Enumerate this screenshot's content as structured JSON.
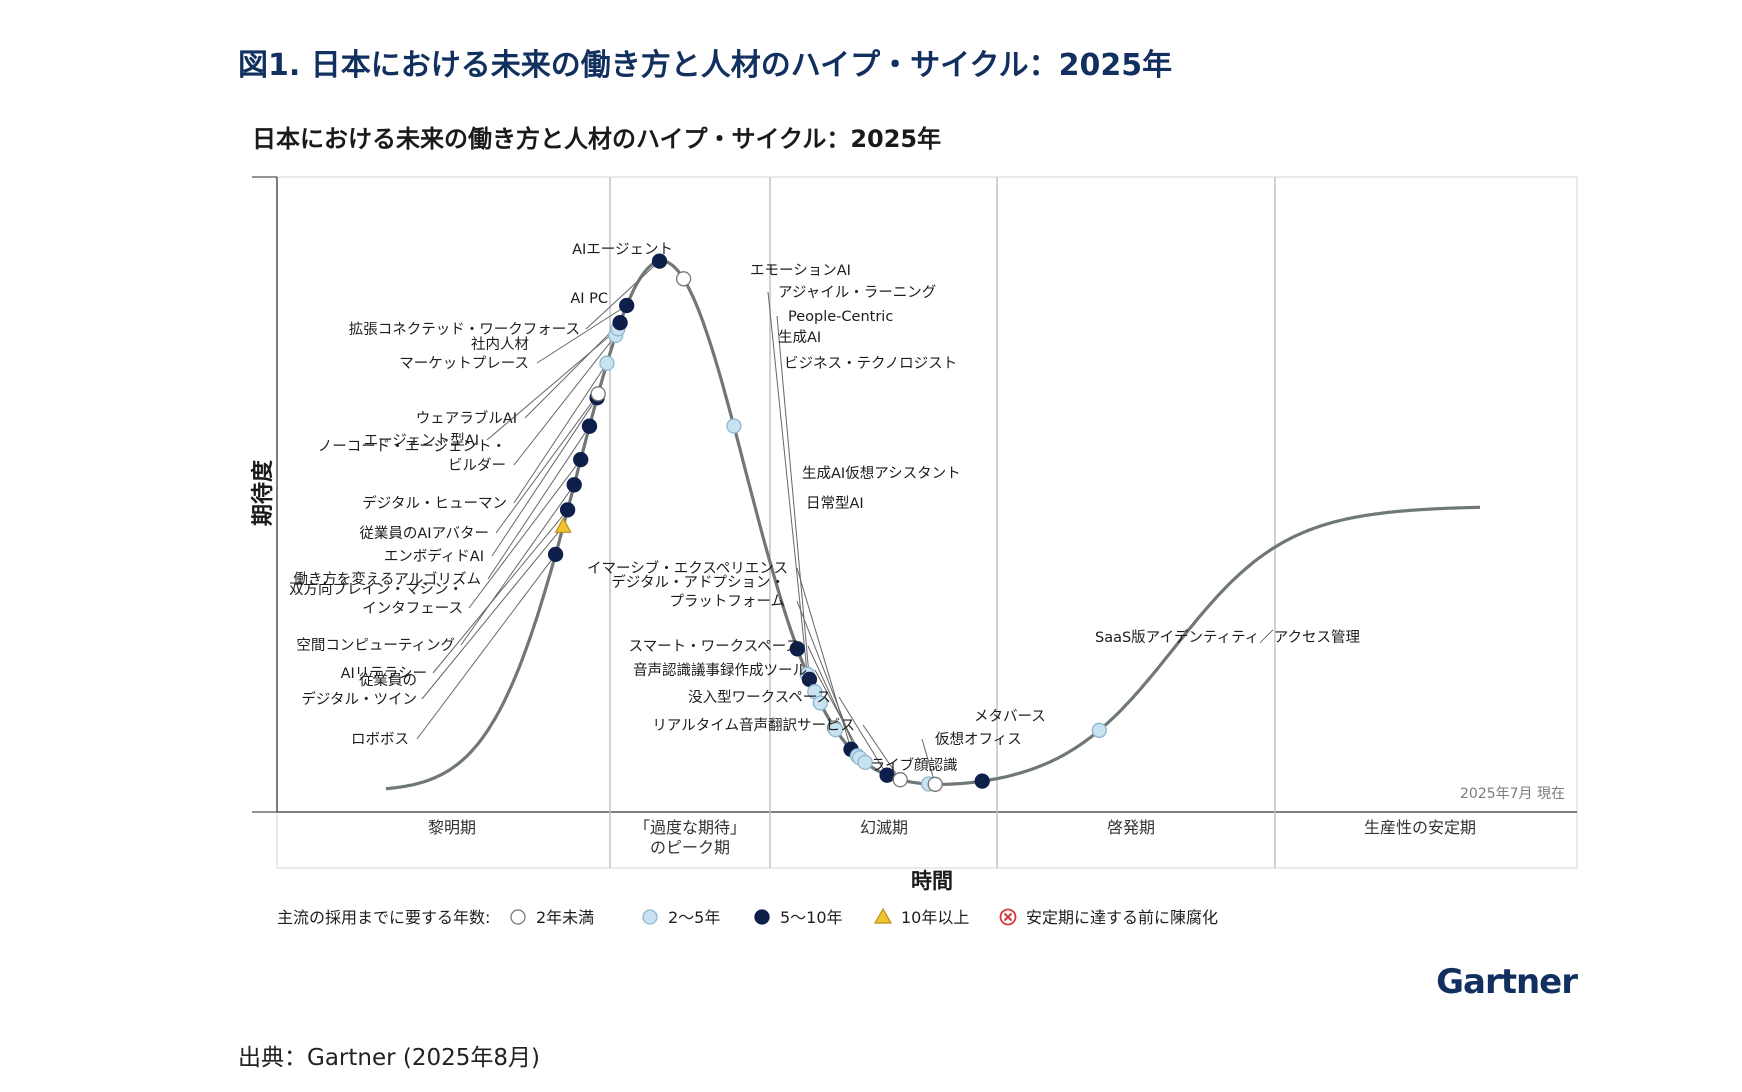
{
  "figure_title": "図1. 日本における未来の働き方と人材のハイプ・サイクル：2025年",
  "source": "出典：Gartner (2025年8月)",
  "brand": "Gartner",
  "colors": {
    "figure_title": "#12305f",
    "curve": "#6f7876",
    "dot_under2": "#ffffff",
    "dot_2to5": "#c9e2f2",
    "dot_5to10": "#0d1f4a",
    "dot_over10": "#f2c12e",
    "obsolete": "#d63b3b",
    "brand": "#12305f"
  },
  "chart_data": {
    "type": "scatter",
    "title": "日本における未来の働き方と人材のハイプ・サイクル：2025年",
    "xlabel": "時間",
    "ylabel": "期待度",
    "as_of": "2025年7月 現在",
    "phases": [
      "黎明期",
      "「過度な期待」のピーク期",
      "幻滅期",
      "啓発期",
      "生産性の安定期"
    ],
    "legend": {
      "title": "主流の採用までに要する年数:",
      "items": [
        {
          "key": "under2",
          "label": "2年未満"
        },
        {
          "key": "2to5",
          "label": "2～5年"
        },
        {
          "key": "5to10",
          "label": "5～10年"
        },
        {
          "key": "over10",
          "label": "10年以上"
        },
        {
          "key": "obsolete",
          "label": "安定期に達する前に陳腐化"
        }
      ]
    },
    "points": [
      {
        "label": "ロボボス",
        "t": 0.155,
        "cat": "5to10"
      },
      {
        "label": "従業員のデジタル・ツイン",
        "t": 0.162,
        "cat": "over10"
      },
      {
        "label": "AIリテラシー",
        "t": 0.166,
        "cat": "5to10"
      },
      {
        "label": "空間コンピューティング",
        "t": 0.172,
        "cat": "5to10"
      },
      {
        "label": "双方向ブレイン・マシン・インタフェース",
        "t": 0.178,
        "cat": "5to10"
      },
      {
        "label": "働き方を変えるアルゴリズム",
        "t": 0.186,
        "cat": "5to10"
      },
      {
        "label": "エンボディドAI",
        "t": 0.193,
        "cat": "5to10"
      },
      {
        "label": "従業員のAIアバター",
        "t": 0.194,
        "cat": "under2"
      },
      {
        "label": "デジタル・ヒューマン",
        "t": 0.202,
        "cat": "2to5"
      },
      {
        "label": "ノーコード・エージェント・ビルダー",
        "t": 0.21,
        "cat": "2to5"
      },
      {
        "label": "エージェント型AI",
        "t": 0.212,
        "cat": "2to5"
      },
      {
        "label": "ウェアラブルAI",
        "t": 0.214,
        "cat": "5to10"
      },
      {
        "label": "社内人材マーケットプレース",
        "t": 0.22,
        "cat": "5to10"
      },
      {
        "label": "拡張コネクテッド・ワークフォース",
        "t": 0.25,
        "cat": "5to10"
      },
      {
        "label": "AI PC",
        "t": 0.272,
        "cat": "under2"
      },
      {
        "label": "AIエージェント",
        "t": 0.318,
        "cat": "2to5"
      },
      {
        "label": "エモーションAI",
        "t": 0.376,
        "cat": "5to10"
      },
      {
        "label": "アジャイル・ラーニング",
        "t": 0.385,
        "cat": "2to5"
      },
      {
        "label": "People-Centric",
        "t": 0.387,
        "cat": "5to10"
      },
      {
        "label": "生成AI",
        "t": 0.392,
        "cat": "2to5"
      },
      {
        "label": "ビジネス・テクノロジスト",
        "t": 0.397,
        "cat": "2to5"
      },
      {
        "label": "生成AI仮想アシスタント",
        "t": 0.41,
        "cat": "under2"
      },
      {
        "label": "日常型AI",
        "t": 0.411,
        "cat": "2to5"
      },
      {
        "label": "イマーシブ・エクスペリエンス",
        "t": 0.425,
        "cat": "5to10"
      },
      {
        "label": "デジタル・アドプション・プラットフォーム",
        "t": 0.431,
        "cat": "2to5"
      },
      {
        "label": "スマート・ワークスペース",
        "t": 0.433,
        "cat": "2to5"
      },
      {
        "label": "音声認識議事録作成ツール",
        "t": 0.438,
        "cat": "2to5"
      },
      {
        "label": "没入型ワークスペース",
        "t": 0.458,
        "cat": "5to10"
      },
      {
        "label": "リアルタイム音声翻訳サービス",
        "t": 0.47,
        "cat": "under2"
      },
      {
        "label": "ライブ顔認識",
        "t": 0.496,
        "cat": "2to5"
      },
      {
        "label": "仮想オフィス",
        "t": 0.502,
        "cat": "under2"
      },
      {
        "label": "メタバース",
        "t": 0.545,
        "cat": "5to10"
      },
      {
        "label": "SaaS版アイデンティティ／アクセス管理",
        "t": 0.652,
        "cat": "2to5"
      }
    ]
  }
}
